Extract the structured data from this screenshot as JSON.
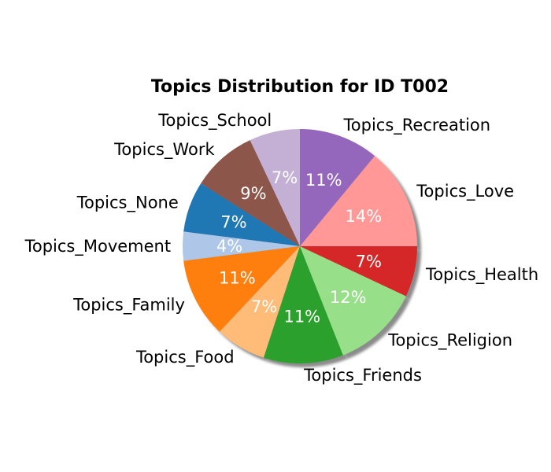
{
  "chart_data": {
    "type": "pie",
    "title": "Topics Distribution for ID T002",
    "shadow": true,
    "start_angle_deg": 90,
    "direction": "counterclockwise",
    "slices": [
      {
        "label": "Topics_School",
        "value": 7,
        "pct_label": "7%",
        "color": "#c5b0d5"
      },
      {
        "label": "Topics_Work",
        "value": 9,
        "pct_label": "9%",
        "color": "#8c564b"
      },
      {
        "label": "Topics_None",
        "value": 7,
        "pct_label": "7%",
        "color": "#1f77b4"
      },
      {
        "label": "Topics_Movement",
        "value": 4,
        "pct_label": "4%",
        "color": "#aec7e8"
      },
      {
        "label": "Topics_Family",
        "value": 11,
        "pct_label": "11%",
        "color": "#ff7f0e"
      },
      {
        "label": "Topics_Food",
        "value": 7,
        "pct_label": "7%",
        "color": "#ffbb78"
      },
      {
        "label": "Topics_Friends",
        "value": 11,
        "pct_label": "11%",
        "color": "#2ca02c"
      },
      {
        "label": "Topics_Religion",
        "value": 12,
        "pct_label": "12%",
        "color": "#98df8a"
      },
      {
        "label": "Topics_Health",
        "value": 7,
        "pct_label": "7%",
        "color": "#d62728"
      },
      {
        "label": "Topics_Love",
        "value": 14,
        "pct_label": "14%",
        "color": "#ff9896"
      },
      {
        "label": "Topics_Recreation",
        "value": 11,
        "pct_label": "11%",
        "color": "#9467bd"
      }
    ]
  }
}
